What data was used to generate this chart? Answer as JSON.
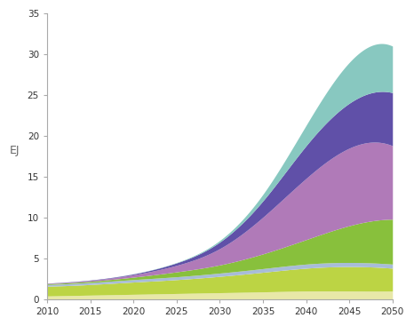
{
  "years": [
    2010,
    2015,
    2020,
    2025,
    2030,
    2035,
    2040,
    2045,
    2050
  ],
  "layers": [
    {
      "name": "layer1_cream",
      "color": "#e8e8a8",
      "values": [
        0.4,
        0.5,
        0.6,
        0.7,
        0.8,
        0.9,
        1.0,
        1.0,
        1.0
      ]
    },
    {
      "name": "layer2_lime",
      "color": "#bcd444",
      "values": [
        1.2,
        1.3,
        1.5,
        1.7,
        2.0,
        2.4,
        2.8,
        3.0,
        2.8
      ]
    },
    {
      "name": "layer3_periwinkle",
      "color": "#a8bcd8",
      "values": [
        0.2,
        0.25,
        0.3,
        0.35,
        0.4,
        0.45,
        0.5,
        0.5,
        0.5
      ]
    },
    {
      "name": "layer4_medgreen",
      "color": "#88c03c",
      "values": [
        0.1,
        0.15,
        0.3,
        0.6,
        1.0,
        1.8,
        3.0,
        4.5,
        5.5
      ]
    },
    {
      "name": "layer5_mauve",
      "color": "#b07ab8",
      "values": [
        0.05,
        0.1,
        0.3,
        0.8,
        2.0,
        4.5,
        7.5,
        9.5,
        9.0
      ]
    },
    {
      "name": "layer6_darkpurple",
      "color": "#6050a8",
      "values": [
        0.02,
        0.05,
        0.1,
        0.3,
        0.8,
        2.0,
        4.0,
        5.5,
        6.5
      ]
    },
    {
      "name": "layer7_teal",
      "color": "#88c8c0",
      "values": [
        0.0,
        0.0,
        0.02,
        0.05,
        0.2,
        0.8,
        2.5,
        5.0,
        5.7
      ]
    }
  ],
  "xlabel": "",
  "ylabel": "EJ",
  "ylim": [
    0,
    35
  ],
  "xlim": [
    2010,
    2050
  ],
  "yticks": [
    0,
    5,
    10,
    15,
    20,
    25,
    30,
    35
  ],
  "xticks": [
    2010,
    2015,
    2020,
    2025,
    2030,
    2035,
    2040,
    2045,
    2050
  ],
  "background_color": "#ffffff"
}
